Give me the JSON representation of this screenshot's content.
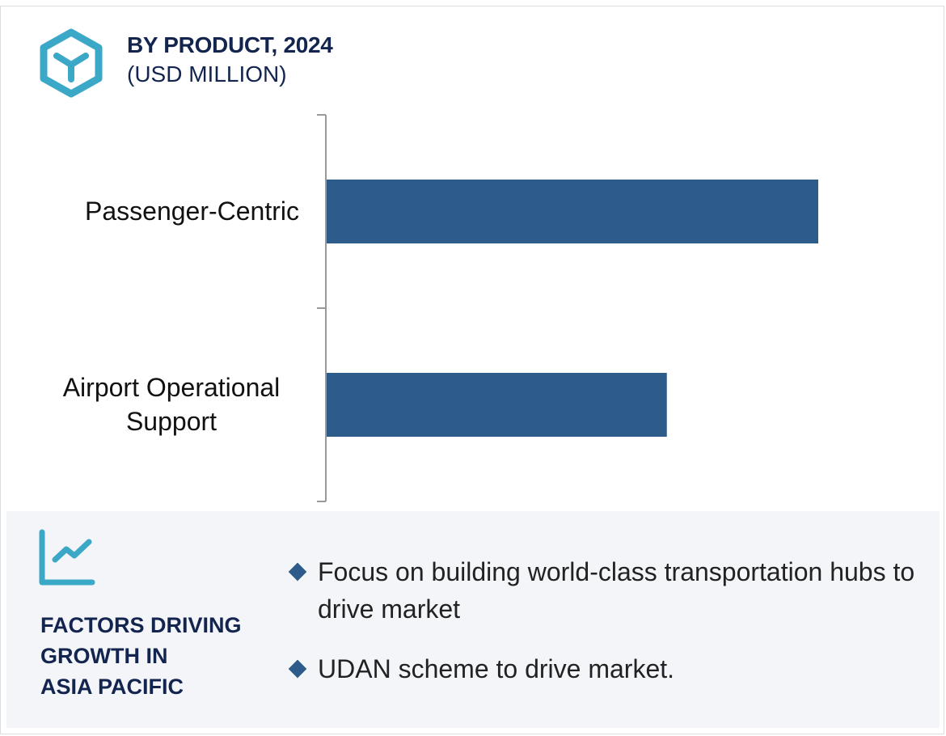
{
  "header": {
    "title": "BY PRODUCT, 2024",
    "subtitle": "(USD MILLION)",
    "icon": "cube-icon"
  },
  "chart_data": {
    "type": "bar",
    "orientation": "horizontal",
    "title": "BY PRODUCT, 2024",
    "subtitle": "(USD MILLION)",
    "categories": [
      "Passenger-Centric",
      "Airport Operational Support"
    ],
    "values": [
      100,
      69.2
    ],
    "xlim": [
      0,
      100
    ],
    "grid": false,
    "legend": "none",
    "bar_color": "#2e5c8a"
  },
  "factors": {
    "icon": "growth-chart-icon",
    "title_lines": [
      "FACTORS DRIVING",
      "GROWTH IN",
      "ASIA PACIFIC"
    ],
    "bullets": [
      "Focus on building world-class transportation hubs to drive market",
      "UDAN scheme to drive market."
    ]
  },
  "colors": {
    "accent": "#3aa8c6",
    "navy": "#13254f",
    "bar": "#2e5c8a",
    "panel": "#f3f5f9"
  }
}
